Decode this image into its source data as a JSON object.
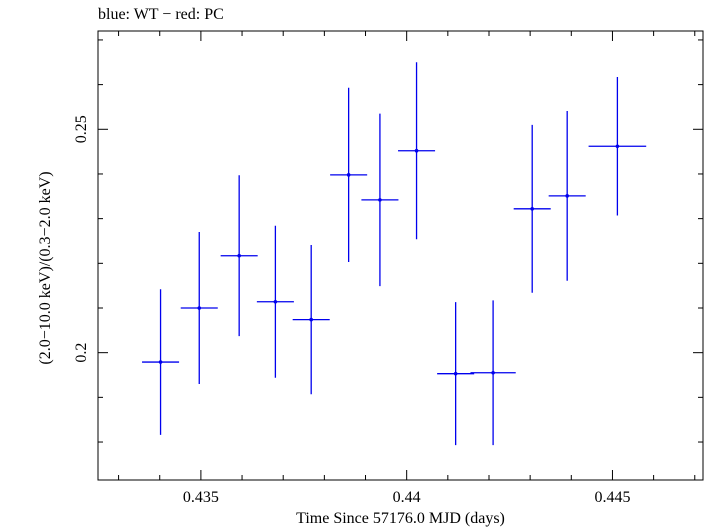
{
  "chart_data": {
    "type": "scatter",
    "title": "blue: WT − red: PC",
    "xlabel": "Time Since 57176.0 MJD (days)",
    "ylabel": "(2.0−10.0 keV)/(0.3−2.0 keV)",
    "xlim": [
      0.4325,
      0.4472
    ],
    "ylim": [
      0.1715,
      0.272
    ],
    "xticks": [
      0.435,
      0.44,
      0.445
    ],
    "xtick_labels": [
      "0.435",
      "0.44",
      "0.445"
    ],
    "yticks": [
      0.2,
      0.25
    ],
    "ytick_labels": [
      "0.2",
      "0.25"
    ],
    "grid": false,
    "color": "#0000ee",
    "series": [
      {
        "points": [
          {
            "x": 0.43402,
            "xerr": 0.00045,
            "y": 0.1979,
            "yerr": 0.0163
          },
          {
            "x": 0.43496,
            "xerr": 0.00045,
            "y": 0.21,
            "yerr": 0.017
          },
          {
            "x": 0.43593,
            "xerr": 0.00045,
            "y": 0.2217,
            "yerr": 0.018
          },
          {
            "x": 0.43681,
            "xerr": 0.00045,
            "y": 0.2114,
            "yerr": 0.017
          },
          {
            "x": 0.43768,
            "xerr": 0.00045,
            "y": 0.2074,
            "yerr": 0.0167
          },
          {
            "x": 0.43859,
            "xerr": 0.00045,
            "y": 0.2398,
            "yerr": 0.0195
          },
          {
            "x": 0.43935,
            "xerr": 0.00045,
            "y": 0.2342,
            "yerr": 0.0193
          },
          {
            "x": 0.44024,
            "xerr": 0.00045,
            "y": 0.2452,
            "yerr": 0.0198
          },
          {
            "x": 0.44119,
            "xerr": 0.00045,
            "y": 0.1953,
            "yerr": 0.016
          },
          {
            "x": 0.4421,
            "xerr": 0.00055,
            "y": 0.1955,
            "yerr": 0.0162
          },
          {
            "x": 0.44305,
            "xerr": 0.00045,
            "y": 0.2322,
            "yerr": 0.0188
          },
          {
            "x": 0.4439,
            "xerr": 0.00045,
            "y": 0.2351,
            "yerr": 0.019
          },
          {
            "x": 0.44512,
            "xerr": 0.0007,
            "y": 0.2462,
            "yerr": 0.0155
          }
        ]
      }
    ]
  }
}
